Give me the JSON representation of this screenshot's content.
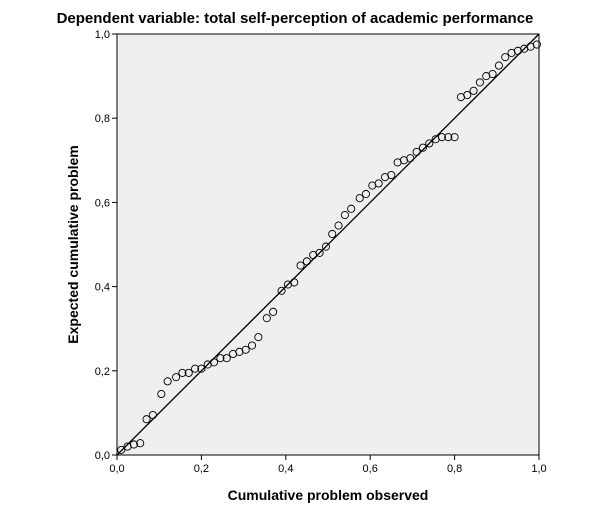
{
  "chart_data": {
    "type": "scatter",
    "title": "Dependent variable: total self-perception of academic performance",
    "xlabel": "Cumulative problem observed",
    "ylabel": "Expected cumulative problem",
    "xlim": [
      0,
      1
    ],
    "ylim": [
      0,
      1
    ],
    "x_ticks": [
      "0,0",
      "0,2",
      "0,4",
      "0,6",
      "0,8",
      "1,0"
    ],
    "y_ticks": [
      "0,0",
      "0,2",
      "0,4",
      "0,6",
      "0,8",
      "1,0"
    ],
    "grid": false,
    "reference_line": {
      "from": [
        0,
        0
      ],
      "to": [
        1,
        1
      ]
    },
    "plot_background": "#efefef",
    "marker": "open-circle",
    "series": [
      {
        "points": [
          [
            0.01,
            0.012
          ],
          [
            0.025,
            0.02
          ],
          [
            0.04,
            0.025
          ],
          [
            0.055,
            0.028
          ],
          [
            0.07,
            0.085
          ],
          [
            0.085,
            0.095
          ],
          [
            0.105,
            0.145
          ],
          [
            0.12,
            0.175
          ],
          [
            0.14,
            0.185
          ],
          [
            0.155,
            0.195
          ],
          [
            0.17,
            0.195
          ],
          [
            0.185,
            0.205
          ],
          [
            0.2,
            0.205
          ],
          [
            0.215,
            0.215
          ],
          [
            0.23,
            0.22
          ],
          [
            0.245,
            0.23
          ],
          [
            0.26,
            0.23
          ],
          [
            0.275,
            0.24
          ],
          [
            0.29,
            0.245
          ],
          [
            0.305,
            0.25
          ],
          [
            0.32,
            0.26
          ],
          [
            0.335,
            0.28
          ],
          [
            0.355,
            0.325
          ],
          [
            0.37,
            0.34
          ],
          [
            0.39,
            0.39
          ],
          [
            0.405,
            0.405
          ],
          [
            0.42,
            0.41
          ],
          [
            0.435,
            0.45
          ],
          [
            0.45,
            0.46
          ],
          [
            0.465,
            0.475
          ],
          [
            0.48,
            0.48
          ],
          [
            0.495,
            0.495
          ],
          [
            0.51,
            0.525
          ],
          [
            0.525,
            0.545
          ],
          [
            0.54,
            0.57
          ],
          [
            0.555,
            0.585
          ],
          [
            0.575,
            0.61
          ],
          [
            0.59,
            0.62
          ],
          [
            0.605,
            0.64
          ],
          [
            0.62,
            0.645
          ],
          [
            0.635,
            0.66
          ],
          [
            0.65,
            0.665
          ],
          [
            0.665,
            0.695
          ],
          [
            0.68,
            0.7
          ],
          [
            0.695,
            0.705
          ],
          [
            0.71,
            0.72
          ],
          [
            0.725,
            0.73
          ],
          [
            0.74,
            0.74
          ],
          [
            0.755,
            0.75
          ],
          [
            0.77,
            0.755
          ],
          [
            0.785,
            0.755
          ],
          [
            0.8,
            0.755
          ],
          [
            0.815,
            0.85
          ],
          [
            0.83,
            0.855
          ],
          [
            0.845,
            0.865
          ],
          [
            0.86,
            0.885
          ],
          [
            0.875,
            0.9
          ],
          [
            0.89,
            0.905
          ],
          [
            0.905,
            0.925
          ],
          [
            0.92,
            0.945
          ],
          [
            0.935,
            0.955
          ],
          [
            0.95,
            0.96
          ],
          [
            0.965,
            0.965
          ],
          [
            0.98,
            0.97
          ],
          [
            0.995,
            0.975
          ]
        ]
      }
    ]
  }
}
